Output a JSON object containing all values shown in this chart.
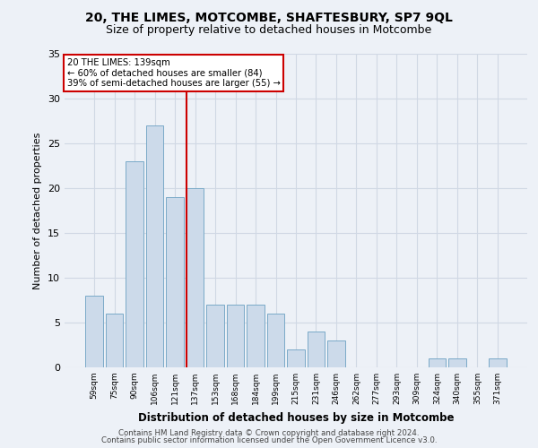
{
  "title": "20, THE LIMES, MOTCOMBE, SHAFTESBURY, SP7 9QL",
  "subtitle": "Size of property relative to detached houses in Motcombe",
  "xlabel": "Distribution of detached houses by size in Motcombe",
  "ylabel": "Number of detached properties",
  "bar_labels": [
    "59sqm",
    "75sqm",
    "90sqm",
    "106sqm",
    "121sqm",
    "137sqm",
    "153sqm",
    "168sqm",
    "184sqm",
    "199sqm",
    "215sqm",
    "231sqm",
    "246sqm",
    "262sqm",
    "277sqm",
    "293sqm",
    "309sqm",
    "324sqm",
    "340sqm",
    "355sqm",
    "371sqm"
  ],
  "bar_heights": [
    8,
    6,
    23,
    27,
    19,
    20,
    7,
    7,
    7,
    6,
    2,
    4,
    3,
    0,
    0,
    0,
    0,
    1,
    1,
    0,
    1
  ],
  "bar_color": "#ccdaea",
  "bar_edgecolor": "#7aaac8",
  "vline_color": "#cc0000",
  "vline_x_index": 5,
  "annotation_text": "20 THE LIMES: 139sqm\n← 60% of detached houses are smaller (84)\n39% of semi-detached houses are larger (55) →",
  "annotation_box_color": "#ffffff",
  "annotation_box_edgecolor": "#cc0000",
  "grid_color": "#d0d8e4",
  "background_color": "#edf1f7",
  "ylim": [
    0,
    35
  ],
  "yticks": [
    0,
    5,
    10,
    15,
    20,
    25,
    30,
    35
  ],
  "title_fontsize": 10,
  "subtitle_fontsize": 9,
  "footer1": "Contains HM Land Registry data © Crown copyright and database right 2024.",
  "footer2": "Contains public sector information licensed under the Open Government Licence v3.0."
}
